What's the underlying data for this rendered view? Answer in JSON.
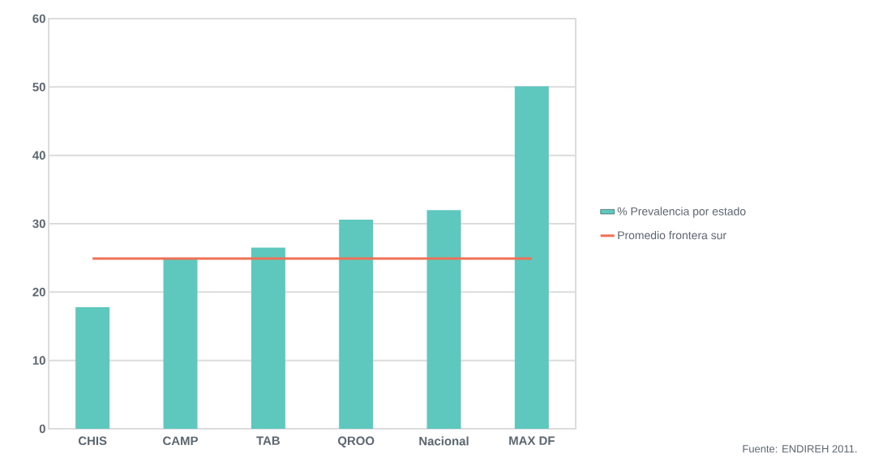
{
  "chart_data": {
    "type": "bar",
    "categories": [
      "CHIS",
      "CAMP",
      "TAB",
      "QROO",
      "Nacional",
      "MAX  DF"
    ],
    "series": [
      {
        "name": "% Prevalencia por estado",
        "color": "#5ec8bf",
        "values": [
          17.8,
          24.9,
          26.5,
          30.6,
          32.0,
          50.1
        ]
      },
      {
        "name": "Promedio frontera sur",
        "type": "line",
        "color": "#f07056",
        "values": [
          24.9,
          24.9,
          24.9,
          24.9,
          24.9,
          24.9
        ]
      }
    ],
    "ylim": [
      0,
      60
    ],
    "yticks": [
      0,
      10,
      20,
      30,
      40,
      50,
      60
    ],
    "grid": "y",
    "legend": "right",
    "annotations": [
      "Fuente: ENDIREH 2011."
    ]
  }
}
